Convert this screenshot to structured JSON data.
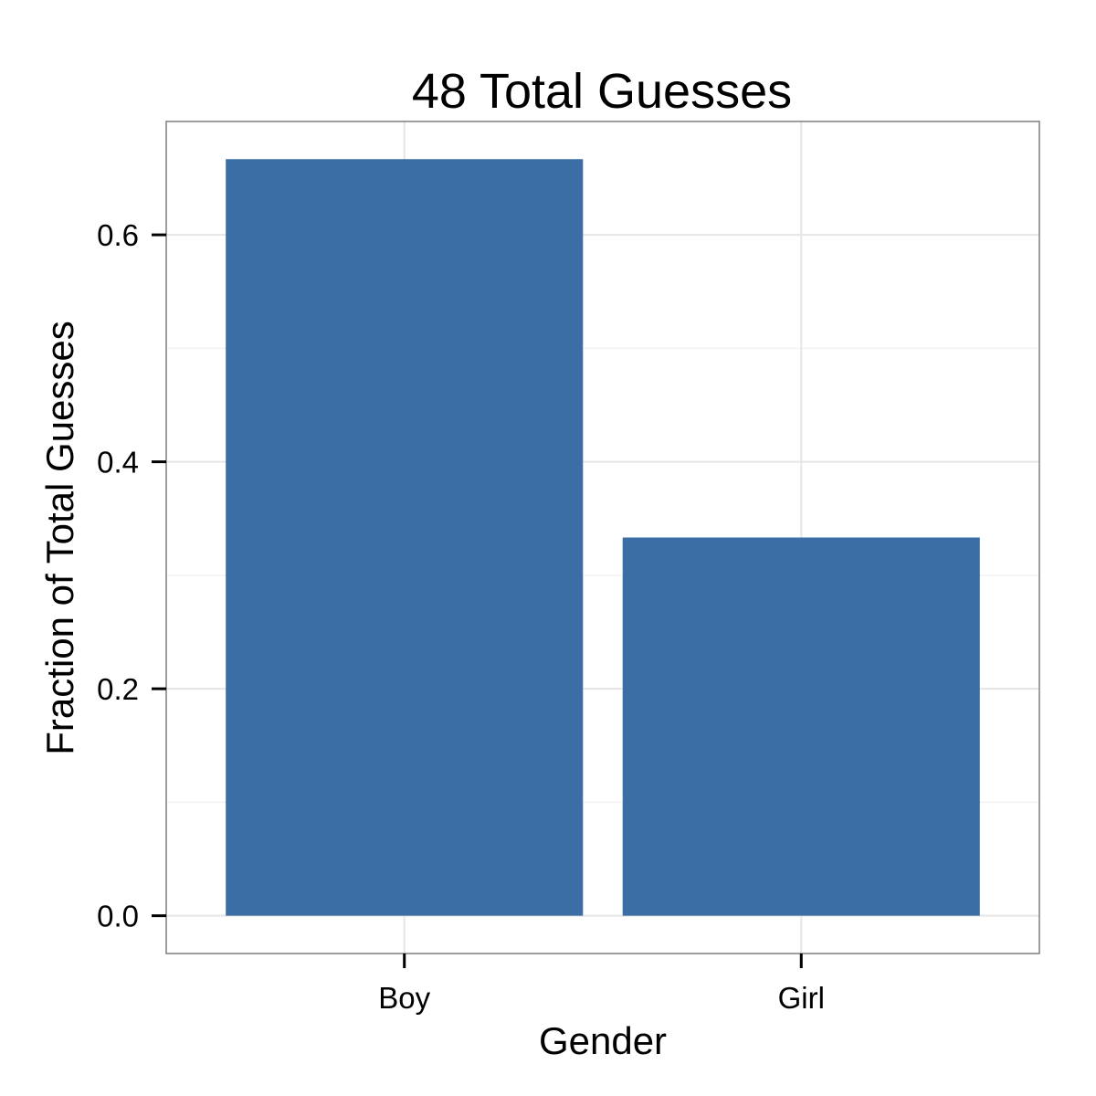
{
  "chart_data": {
    "type": "bar",
    "title": "48 Total Guesses",
    "xlabel": "Gender",
    "ylabel": "Fraction of Total Guesses",
    "categories": [
      "Boy",
      "Girl"
    ],
    "values": [
      0.6667,
      0.3333
    ],
    "ylim": [
      -0.0333,
      0.6999
    ],
    "yticks": [
      0.0,
      0.2,
      0.4,
      0.6
    ],
    "ytick_labels": [
      "0.0",
      "0.2",
      "0.4",
      "0.6"
    ],
    "grid": true,
    "legend": "none",
    "colors": {
      "bar": "#3A6EA5",
      "grid_major": "#E5E5E5",
      "grid_minor": "#F2F2F2",
      "panel_border": "#7F7F7F",
      "tick": "#000000",
      "background": "#FFFFFF"
    }
  }
}
